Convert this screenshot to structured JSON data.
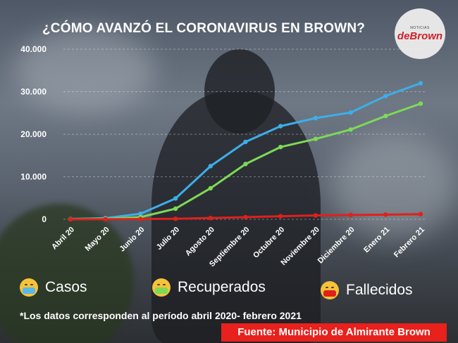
{
  "title": "¿CÓMO AVANZÓ EL CORONAVIRUS EN BROWN?",
  "logo": {
    "small_text": "NOTICIAS",
    "main_text": "deBrown"
  },
  "chart_data": {
    "type": "line",
    "categories": [
      "Abril 20",
      "Mayo 20",
      "Junio 20",
      "Julio 20",
      "Agosto 20",
      "Septiembre 20",
      "Octubre 20",
      "Noviembre 20",
      "Diciembre 20",
      "Enero 21",
      "Febrero 21"
    ],
    "y_ticks": [
      "0",
      "10.000",
      "20.000",
      "30.000",
      "40.000"
    ],
    "ylim": [
      0,
      40000
    ],
    "grid": true,
    "series": [
      {
        "name": "Casos",
        "color": "#3daee9",
        "values": [
          80,
          280,
          1300,
          4900,
          12500,
          18200,
          21900,
          23800,
          25100,
          29000,
          32000
        ]
      },
      {
        "name": "Recuperados",
        "color": "#7ed957",
        "values": [
          20,
          120,
          500,
          2500,
          7300,
          13000,
          17000,
          18900,
          21100,
          24300,
          27200
        ]
      },
      {
        "name": "Fallecidos",
        "color": "#e0201b",
        "values": [
          5,
          20,
          60,
          130,
          300,
          500,
          730,
          900,
          1000,
          1100,
          1200
        ]
      }
    ]
  },
  "legend": [
    {
      "label": "Casos",
      "icon": "mask-emoji-icon",
      "face_color": "#f5c33b",
      "mask_color": "#58b8e8"
    },
    {
      "label": "Recuperados",
      "icon": "mask-emoji-icon",
      "face_color": "#f5c33b",
      "mask_color": "#7ed957"
    },
    {
      "label": "Fallecidos",
      "icon": "mask-emoji-icon",
      "face_color": "#f5c33b",
      "mask_color": "#e0201b"
    }
  ],
  "footnote": "*Los datos corresponden al período abril 2020- febrero 2021",
  "source": "Fuente: Municipio de Almirante Brown"
}
